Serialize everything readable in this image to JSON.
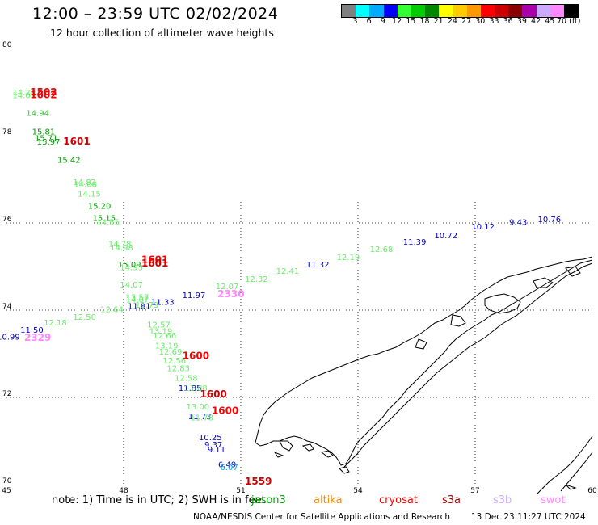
{
  "header": {
    "title": "12:00 – 23:59 UTC 02/02/2024",
    "subtitle": "12 hour collection of altimeter wave heights"
  },
  "legend": {
    "colors": [
      "#808080",
      "#00ffff",
      "#00aaff",
      "#0000ff",
      "#33ff33",
      "#00cc00",
      "#008800",
      "#ffff00",
      "#ffcc00",
      "#ff9900",
      "#ff0000",
      "#cc0000",
      "#880000",
      "#aa00aa",
      "#ccaaff",
      "#ff88ff",
      "#000000"
    ],
    "labels": [
      "3",
      "6",
      "9",
      "12",
      "15",
      "18",
      "21",
      "24",
      "27",
      "30",
      "33",
      "36",
      "39",
      "42",
      "45",
      "70 (ft)"
    ]
  },
  "map": {
    "lon_labels": [
      "45",
      "48",
      "51",
      "54",
      "57",
      "60"
    ],
    "lat_labels": [
      "80",
      "78",
      "76",
      "74",
      "72",
      "70"
    ],
    "wave_heights": [
      {
        "text": "14.21",
        "lon": 45.45,
        "lat": 78.93,
        "color": "#66ee66"
      },
      {
        "text": "14.09",
        "lon": 45.45,
        "lat": 78.86,
        "color": "#66ee66"
      },
      {
        "text": "14.94",
        "lon": 45.8,
        "lat": 78.45,
        "color": "#33cc33"
      },
      {
        "text": "15.81",
        "lon": 45.95,
        "lat": 78.03,
        "color": "#009900"
      },
      {
        "text": "15.71",
        "lon": 46.02,
        "lat": 77.88,
        "color": "#009900"
      },
      {
        "text": "15.97",
        "lon": 46.08,
        "lat": 77.8,
        "color": "#009900"
      },
      {
        "text": "15.42",
        "lon": 46.6,
        "lat": 77.38,
        "color": "#009900"
      },
      {
        "text": "14.82",
        "lon": 47.0,
        "lat": 76.87,
        "color": "#66ee66"
      },
      {
        "text": "14.08",
        "lon": 47.02,
        "lat": 76.82,
        "color": "#66ee66"
      },
      {
        "text": "14.15",
        "lon": 47.12,
        "lat": 76.6,
        "color": "#66ee66"
      },
      {
        "text": "15.20",
        "lon": 47.38,
        "lat": 76.32,
        "color": "#009900"
      },
      {
        "text": "15.15",
        "lon": 47.5,
        "lat": 76.05,
        "color": "#009900"
      },
      {
        "text": "14.55",
        "lon": 47.6,
        "lat": 75.95,
        "color": "#66ee66"
      },
      {
        "text": "14.78",
        "lon": 47.9,
        "lat": 75.45,
        "color": "#66ee66"
      },
      {
        "text": "14.98",
        "lon": 47.95,
        "lat": 75.37,
        "color": "#66ee66"
      },
      {
        "text": "15.09",
        "lon": 48.15,
        "lat": 74.98,
        "color": "#009900"
      },
      {
        "text": "14.93",
        "lon": 48.2,
        "lat": 74.92,
        "color": "#66ee66"
      },
      {
        "text": "14.07",
        "lon": 48.2,
        "lat": 74.52,
        "color": "#66ee66"
      },
      {
        "text": "13.57",
        "lon": 48.35,
        "lat": 74.23,
        "color": "#66ee66"
      },
      {
        "text": "14.07",
        "lon": 48.35,
        "lat": 74.18,
        "color": "#66ee66"
      },
      {
        "text": "11.81",
        "lon": 48.4,
        "lat": 74.03,
        "color": "#0000bb"
      },
      {
        "text": "11.79",
        "lon": 48.6,
        "lat": 74.06,
        "color": "#66ee66"
      },
      {
        "text": "11.33",
        "lon": 49.0,
        "lat": 74.12,
        "color": "#0000bb"
      },
      {
        "text": "11.97",
        "lon": 49.8,
        "lat": 74.28,
        "color": "#0000bb"
      },
      {
        "text": "12.07",
        "lon": 50.65,
        "lat": 74.48,
        "color": "#66ee66"
      },
      {
        "text": "12.32",
        "lon": 51.4,
        "lat": 74.65,
        "color": "#66ee66"
      },
      {
        "text": "12.41",
        "lon": 52.2,
        "lat": 74.83,
        "color": "#66ee66"
      },
      {
        "text": "11.32",
        "lon": 52.97,
        "lat": 74.98,
        "color": "#0000bb"
      },
      {
        "text": "12.19",
        "lon": 53.75,
        "lat": 75.15,
        "color": "#66ee66"
      },
      {
        "text": "12.68",
        "lon": 54.6,
        "lat": 75.33,
        "color": "#66ee66"
      },
      {
        "text": "11.39",
        "lon": 55.45,
        "lat": 75.5,
        "color": "#0000bb"
      },
      {
        "text": "10.72",
        "lon": 56.25,
        "lat": 75.65,
        "color": "#0000bb"
      },
      {
        "text": "10.12",
        "lon": 57.2,
        "lat": 75.85,
        "color": "#0000bb"
      },
      {
        "text": "9.43",
        "lon": 58.1,
        "lat": 75.95,
        "color": "#0000bb"
      },
      {
        "text": "10.76",
        "lon": 58.9,
        "lat": 76.02,
        "color": "#0000bb"
      },
      {
        "text": "12.64",
        "lon": 47.7,
        "lat": 73.95,
        "color": "#66ee66"
      },
      {
        "text": "12.50",
        "lon": 47.0,
        "lat": 73.78,
        "color": "#66ee66"
      },
      {
        "text": "12.18",
        "lon": 46.25,
        "lat": 73.65,
        "color": "#66ee66"
      },
      {
        "text": "11.50",
        "lon": 45.65,
        "lat": 73.48,
        "color": "#0000bb"
      },
      {
        "text": "10.99",
        "lon": 45.05,
        "lat": 73.32,
        "color": "#0000bb"
      },
      {
        "text": "12.57",
        "lon": 48.9,
        "lat": 73.6,
        "color": "#66ee66"
      },
      {
        "text": "13.19",
        "lon": 48.95,
        "lat": 73.45,
        "color": "#66ee66"
      },
      {
        "text": "12.66",
        "lon": 49.05,
        "lat": 73.35,
        "color": "#66ee66"
      },
      {
        "text": "13.19",
        "lon": 49.1,
        "lat": 73.12,
        "color": "#66ee66"
      },
      {
        "text": "12.69",
        "lon": 49.2,
        "lat": 72.98,
        "color": "#66ee66"
      },
      {
        "text": "12.56",
        "lon": 49.3,
        "lat": 72.78,
        "color": "#66ee66"
      },
      {
        "text": "12.83",
        "lon": 49.4,
        "lat": 72.6,
        "color": "#66ee66"
      },
      {
        "text": "12.58",
        "lon": 49.6,
        "lat": 72.38,
        "color": "#66ee66"
      },
      {
        "text": "11.85",
        "lon": 49.7,
        "lat": 72.15,
        "color": "#0000bb"
      },
      {
        "text": "11.88",
        "lon": 49.85,
        "lat": 72.15,
        "color": "#66ee66"
      },
      {
        "text": "13.00",
        "lon": 49.9,
        "lat": 71.72,
        "color": "#66ee66"
      },
      {
        "text": "11.73",
        "lon": 49.95,
        "lat": 71.5,
        "color": "#0000bb"
      },
      {
        "text": "11.78",
        "lon": 50.0,
        "lat": 71.47,
        "color": "#66ee66"
      },
      {
        "text": "10.25",
        "lon": 50.22,
        "lat": 71.02,
        "color": "#0000bb"
      },
      {
        "text": "9.37",
        "lon": 50.3,
        "lat": 70.85,
        "color": "#0000bb"
      },
      {
        "text": "9.11",
        "lon": 50.38,
        "lat": 70.74,
        "color": "#0000bb"
      },
      {
        "text": "6.49",
        "lon": 50.65,
        "lat": 70.4,
        "color": "#0000bb"
      },
      {
        "text": "6.07",
        "lon": 50.7,
        "lat": 70.33,
        "color": "#00aaff"
      },
      {
        "text": "1502",
        "lon": 45.95,
        "lat": 78.93,
        "color": "#ff0000",
        "bold": true
      },
      {
        "text": "1602",
        "lon": 45.95,
        "lat": 78.86,
        "color": "#ff0000",
        "bold": true
      },
      {
        "text": "1601",
        "lon": 46.8,
        "lat": 77.8,
        "color": "#cc0000",
        "bold": true
      },
      {
        "text": "1601",
        "lon": 48.8,
        "lat": 75.08,
        "color": "#ff0000",
        "bold": true
      },
      {
        "text": "1601",
        "lon": 48.8,
        "lat": 75.0,
        "color": "#cc0000",
        "bold": true
      },
      {
        "text": "2330",
        "lon": 50.75,
        "lat": 74.3,
        "color": "#ff88ff",
        "bold": true
      },
      {
        "text": "2329",
        "lon": 45.8,
        "lat": 73.3,
        "color": "#ff88ff",
        "bold": true
      },
      {
        "text": "1600",
        "lon": 49.85,
        "lat": 72.88,
        "color": "#ff0000",
        "bold": true
      },
      {
        "text": "1600",
        "lon": 50.3,
        "lat": 72.0,
        "color": "#cc0000",
        "bold": true
      },
      {
        "text": "1600",
        "lon": 50.6,
        "lat": 71.62,
        "color": "#ff0000",
        "bold": true
      },
      {
        "text": "1559",
        "lon": 51.45,
        "lat": 70.0,
        "color": "#cc0000",
        "bold": true
      }
    ]
  },
  "note": "note: 1) Time is in UTC; 2) SWH is in feet",
  "satellites": [
    {
      "name": "jason3",
      "color": "#00aa00"
    },
    {
      "name": "altika",
      "color": "#ff8800"
    },
    {
      "name": "cryosat",
      "color": "#ff0000"
    },
    {
      "name": "s3a",
      "color": "#aa0000"
    },
    {
      "name": "s3b",
      "color": "#ccaaff"
    },
    {
      "name": "swot",
      "color": "#ff88ff"
    }
  ],
  "footer": {
    "credit": "NOAA/NESDIS Center for Satellite Applications and Research",
    "timestamp": "13 Dec 23:11:27 UTC 2024"
  }
}
